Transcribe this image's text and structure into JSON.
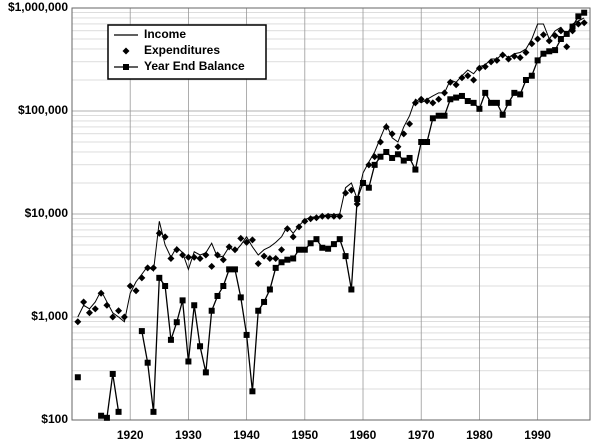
{
  "chart_data": {
    "type": "line",
    "x": [
      1911,
      1912,
      1913,
      1914,
      1915,
      1916,
      1917,
      1918,
      1919,
      1920,
      1921,
      1922,
      1923,
      1924,
      1925,
      1926,
      1927,
      1928,
      1929,
      1930,
      1931,
      1932,
      1933,
      1934,
      1935,
      1936,
      1937,
      1938,
      1939,
      1940,
      1941,
      1942,
      1943,
      1944,
      1945,
      1946,
      1947,
      1948,
      1949,
      1950,
      1951,
      1952,
      1953,
      1954,
      1955,
      1956,
      1957,
      1958,
      1959,
      1960,
      1961,
      1962,
      1963,
      1964,
      1965,
      1966,
      1967,
      1968,
      1969,
      1970,
      1971,
      1972,
      1973,
      1974,
      1975,
      1976,
      1977,
      1978,
      1979,
      1980,
      1981,
      1982,
      1983,
      1984,
      1985,
      1986,
      1987,
      1988,
      1989,
      1990,
      1991,
      1992,
      1993,
      1994,
      1995,
      1996,
      1997,
      1998
    ],
    "series": [
      {
        "name": "Income",
        "color": "#000000",
        "marker": "none",
        "line": true,
        "values": [
          1000,
          1300,
          1200,
          1400,
          1800,
          1400,
          1100,
          1000,
          900,
          1700,
          2200,
          2600,
          3100,
          2800,
          8500,
          5000,
          3800,
          4800,
          4200,
          2900,
          4300,
          4000,
          4200,
          5200,
          3800,
          3900,
          4800,
          4300,
          5000,
          6000,
          4800,
          4000,
          4500,
          4800,
          5300,
          6000,
          7600,
          6500,
          7700,
          8800,
          9300,
          9400,
          9400,
          10000,
          9800,
          10000,
          18000,
          20000,
          14000,
          25000,
          32000,
          40000,
          55000,
          75000,
          55000,
          50000,
          70000,
          90000,
          130000,
          120000,
          130000,
          140000,
          150000,
          150000,
          200000,
          190000,
          220000,
          250000,
          230000,
          270000,
          280000,
          320000,
          320000,
          360000,
          330000,
          360000,
          370000,
          400000,
          500000,
          700000,
          700000,
          500000,
          600000,
          650000,
          550000,
          700000,
          750000,
          800000
        ]
      },
      {
        "name": "Expenditures",
        "color": "#000000",
        "marker": "diamond",
        "line": false,
        "values": [
          900,
          1400,
          1100,
          1200,
          1700,
          1300,
          1000,
          1150,
          1000,
          2000,
          1800,
          2400,
          3000,
          3000,
          6500,
          6000,
          3700,
          4500,
          4000,
          3800,
          3800,
          3700,
          4000,
          3100,
          4000,
          3600,
          4800,
          4500,
          5800,
          5300,
          5600,
          3300,
          3900,
          3700,
          3700,
          4500,
          7200,
          6000,
          7500,
          8500,
          9000,
          9200,
          9500,
          9500,
          9500,
          9500,
          16000,
          17000,
          12500,
          20000,
          30000,
          36000,
          50000,
          70000,
          60000,
          45000,
          60000,
          75000,
          120000,
          130000,
          125000,
          120000,
          130000,
          150000,
          190000,
          180000,
          210000,
          220000,
          200000,
          260000,
          270000,
          300000,
          310000,
          350000,
          320000,
          340000,
          330000,
          370000,
          450000,
          500000,
          550000,
          480000,
          540000,
          600000,
          420000,
          600000,
          700000,
          720000
        ]
      },
      {
        "name": "Year End Balance",
        "color": "#000000",
        "marker": "square",
        "line": true,
        "values": [
          260,
          null,
          null,
          null,
          110,
          105,
          280,
          120,
          null,
          null,
          null,
          730,
          360,
          120,
          2400,
          2000,
          600,
          890,
          1450,
          370,
          1300,
          520,
          290,
          1150,
          1600,
          2000,
          2900,
          2900,
          1550,
          670,
          190,
          1150,
          1400,
          1850,
          3000,
          3400,
          3600,
          3700,
          4500,
          4500,
          5200,
          5700,
          4700,
          4600,
          5100,
          5700,
          3900,
          1850,
          14000,
          20000,
          18000,
          30000,
          36000,
          40000,
          35000,
          38000,
          33000,
          35000,
          27000,
          50000,
          50000,
          85000,
          90000,
          90000,
          130000,
          135000,
          140000,
          125000,
          120000,
          105000,
          150000,
          120000,
          120000,
          92000,
          120000,
          150000,
          145000,
          200000,
          220000,
          310000,
          360000,
          380000,
          390000,
          500000,
          560000,
          660000,
          830000,
          900000
        ]
      }
    ],
    "xlim": [
      1910,
      1999
    ],
    "xticks": [
      1920,
      1930,
      1940,
      1950,
      1960,
      1970,
      1980,
      1990
    ],
    "ylim": [
      100,
      1000000
    ],
    "log_y": true,
    "grid": true,
    "minor_grid": true,
    "yticks": [
      {
        "value": 100,
        "label": "$100"
      },
      {
        "value": 1000,
        "label": "$1,000"
      },
      {
        "value": 10000,
        "label": "$10,000"
      },
      {
        "value": 100000,
        "label": "$100,000"
      },
      {
        "value": 1000000,
        "label": "$1,000,000"
      }
    ],
    "legend": "upper left"
  }
}
